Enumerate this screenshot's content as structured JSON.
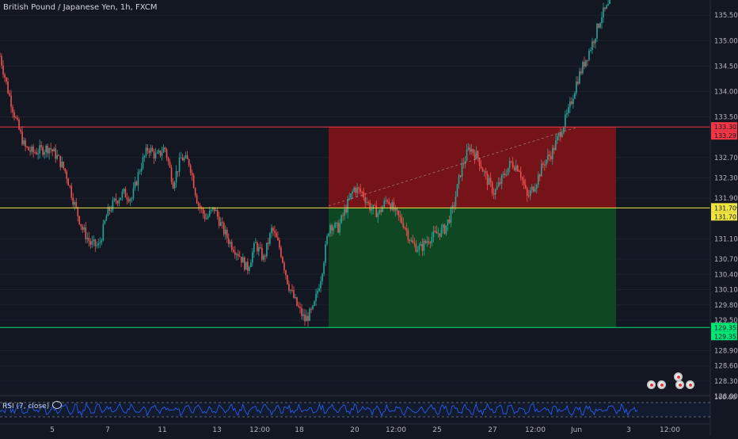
{
  "symbol_title": "British Pound / Japanese Yen, 1h, FXCM",
  "rsi_label": "RSI (7, close)",
  "colors": {
    "background": "#131722",
    "up": "#26a69a",
    "down": "#ef5350",
    "grid": "#1e222d",
    "axis_text": "#b2b5be",
    "stop_zone": "#7a1318",
    "target_zone": "#0e4a22",
    "rsi_line": "#2962ff"
  },
  "chart_data": {
    "type": "candlestick",
    "symbol": "GBPJPY",
    "interval": "1h",
    "ylim": [
      128.05,
      135.8
    ],
    "y_ticks": [
      "135.500",
      "135.000",
      "134.500",
      "134.000",
      "133.500",
      "132.700",
      "132.300",
      "131.900",
      "131.100",
      "130.700",
      "130.400",
      "130.100",
      "129.800",
      "129.500",
      "128.900",
      "128.600",
      "128.300",
      "128.000"
    ],
    "x_ticks": [
      "5",
      "7",
      "11",
      "13",
      "12:00",
      "18",
      "20",
      "12:00",
      "25",
      "27",
      "12:00",
      "Jun",
      "3",
      "12:00"
    ],
    "price_trail": [
      134.7,
      134.0,
      133.4,
      132.9,
      132.8,
      132.85,
      132.9,
      132.7,
      132.4,
      131.8,
      131.3,
      131.0,
      130.95,
      131.6,
      131.85,
      132.0,
      131.9,
      132.5,
      132.9,
      132.7,
      132.9,
      132.2,
      132.7,
      132.6,
      131.8,
      131.5,
      131.7,
      131.3,
      131.0,
      130.8,
      130.5,
      131.0,
      130.7,
      131.3,
      130.9,
      130.2,
      129.8,
      129.5,
      129.7,
      130.4,
      131.4,
      131.3,
      131.7,
      132.1,
      132.0,
      131.7,
      131.6,
      131.9,
      131.6,
      131.4,
      131.0,
      130.9,
      131.1,
      131.2,
      131.3,
      131.7,
      132.5,
      132.9,
      132.7,
      132.3,
      132.0,
      132.3,
      132.6,
      132.5,
      131.9,
      132.2,
      132.6,
      132.8,
      133.2,
      133.6,
      134.2,
      134.6,
      135.0,
      135.5,
      135.7
    ],
    "horizontal_lines": [
      {
        "price": 133.302,
        "label": "133.302",
        "color": "#f23645"
      },
      {
        "price": 131.709,
        "label": "131.709",
        "color": "#f0e442"
      },
      {
        "price": 129.355,
        "label": "129.355",
        "color": "#00e676"
      }
    ],
    "last_price_labels": [
      {
        "label": "133.297",
        "color": "#f23645"
      },
      {
        "label": "131.701",
        "color": "#f0e442"
      },
      {
        "label": "129.352",
        "color": "#00e676"
      }
    ],
    "position": {
      "side": "short",
      "entry": 131.709,
      "stop": 133.302,
      "target": 129.355
    },
    "rsi": {
      "period": 7,
      "upper_band": 70,
      "lower_band": 30,
      "scale_label": "100.00"
    }
  },
  "event_markers": [
    "dividend-marker",
    "split-marker",
    "earnings-marker"
  ]
}
